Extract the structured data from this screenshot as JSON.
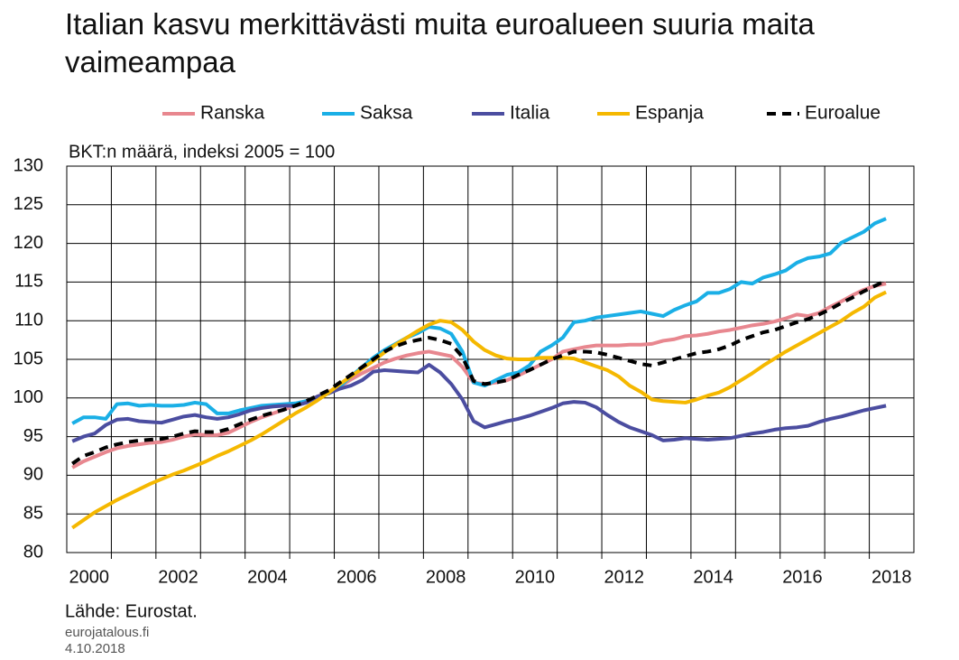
{
  "chart_data": {
    "type": "line",
    "title": "Italian kasvu merkittävästi muita euroalueen suuria maita vaimeampaa",
    "subtitle": "BKT:n määrä, indeksi 2005 = 100",
    "source": "Lähde: Eurostat.",
    "site": "eurojatalous.fi",
    "date": "4.10.2018",
    "legend": "top",
    "grid": true,
    "xlim": [
      2000,
      2019
    ],
    "xticks": [
      2000,
      2002,
      2004,
      2006,
      2008,
      2010,
      2012,
      2014,
      2016,
      2018
    ],
    "xgrid": [
      2001,
      2002,
      2003,
      2004,
      2005,
      2006,
      2007,
      2008,
      2009,
      2010,
      2011,
      2012,
      2013,
      2014,
      2015,
      2016,
      2017,
      2018
    ],
    "ylim": [
      80,
      130
    ],
    "yticks": [
      80,
      85,
      90,
      95,
      100,
      105,
      110,
      115,
      120,
      125,
      130
    ],
    "x": [
      2000.125,
      2000.375,
      2000.625,
      2000.875,
      2001.125,
      2001.375,
      2001.625,
      2001.875,
      2002.125,
      2002.375,
      2002.625,
      2002.875,
      2003.125,
      2003.375,
      2003.625,
      2003.875,
      2004.125,
      2004.375,
      2004.625,
      2004.875,
      2005.125,
      2005.375,
      2005.625,
      2005.875,
      2006.125,
      2006.375,
      2006.625,
      2006.875,
      2007.125,
      2007.375,
      2007.625,
      2007.875,
      2008.125,
      2008.375,
      2008.625,
      2008.875,
      2009.125,
      2009.375,
      2009.625,
      2009.875,
      2010.125,
      2010.375,
      2010.625,
      2010.875,
      2011.125,
      2011.375,
      2011.625,
      2011.875,
      2012.125,
      2012.375,
      2012.625,
      2012.875,
      2013.125,
      2013.375,
      2013.625,
      2013.875,
      2014.125,
      2014.375,
      2014.625,
      2014.875,
      2015.125,
      2015.375,
      2015.625,
      2015.875,
      2016.125,
      2016.375,
      2016.625,
      2016.875,
      2017.125,
      2017.375,
      2017.625,
      2017.875,
      2018.125,
      2018.375
    ],
    "series": [
      {
        "name": "Ranska",
        "color": "#e8878f",
        "linestyle": "solid",
        "values": [
          91,
          91.8,
          92.4,
          93,
          93.5,
          93.8,
          94,
          94.2,
          94.3,
          94.6,
          95,
          95.3,
          95.2,
          95.2,
          95.5,
          96.2,
          96.9,
          97.5,
          98,
          98.5,
          99.1,
          99.5,
          100.2,
          100.8,
          101.5,
          102.4,
          103.2,
          103.9,
          104.6,
          105.1,
          105.5,
          105.8,
          106,
          105.7,
          105.4,
          104,
          102,
          101.8,
          102,
          102.3,
          102.9,
          103.6,
          104.3,
          105,
          106,
          106.3,
          106.6,
          106.8,
          106.8,
          106.8,
          106.9,
          106.9,
          107,
          107.4,
          107.6,
          108,
          108.1,
          108.3,
          108.6,
          108.8,
          109.1,
          109.4,
          109.6,
          109.9,
          110.3,
          110.8,
          110.6,
          111,
          111.8,
          112.5,
          113.3,
          114,
          114.5,
          114.8
        ]
      },
      {
        "name": "Saksa",
        "color": "#1aafe6",
        "linestyle": "solid",
        "values": [
          96.7,
          97.5,
          97.5,
          97.3,
          99.2,
          99.3,
          99,
          99.1,
          99,
          99,
          99.1,
          99.4,
          99.2,
          98,
          98,
          98.4,
          98.7,
          99,
          99.1,
          99.2,
          99.3,
          99.6,
          100,
          100.6,
          101.5,
          102.8,
          104,
          105.2,
          106.2,
          107,
          107.8,
          108.4,
          109.2,
          109,
          108.3,
          106,
          102,
          101.6,
          102.3,
          103,
          103.3,
          104.2,
          106,
          106.8,
          107.8,
          109.8,
          110,
          110.4,
          110.6,
          110.8,
          111,
          111.2,
          110.9,
          110.6,
          111.4,
          112,
          112.5,
          113.6,
          113.6,
          114.1,
          115,
          114.8,
          115.6,
          116,
          116.5,
          117.5,
          118.1,
          118.3,
          118.7,
          120.1,
          120.8,
          121.5,
          122.6,
          123.2
        ]
      },
      {
        "name": "Italia",
        "color": "#4b4da0",
        "linestyle": "solid",
        "values": [
          94.4,
          95,
          95.4,
          96.5,
          97.2,
          97.3,
          97,
          96.9,
          96.8,
          97.2,
          97.6,
          97.8,
          97.5,
          97.3,
          97.5,
          97.9,
          98.4,
          98.7,
          98.9,
          99,
          99,
          99.4,
          100.2,
          100.6,
          101.2,
          101.6,
          102.3,
          103.4,
          103.6,
          103.5,
          103.4,
          103.3,
          104.3,
          103.3,
          101.8,
          99.8,
          97,
          96.2,
          96.6,
          97,
          97.3,
          97.7,
          98.2,
          98.7,
          99.3,
          99.5,
          99.4,
          98.8,
          97.8,
          96.9,
          96.2,
          95.7,
          95.2,
          94.5,
          94.6,
          94.8,
          94.7,
          94.6,
          94.7,
          94.8,
          95.1,
          95.4,
          95.6,
          95.9,
          96.1,
          96.2,
          96.4,
          96.9,
          97.3,
          97.6,
          98,
          98.4,
          98.7,
          99
        ]
      },
      {
        "name": "Espanja",
        "color": "#f5b800",
        "linestyle": "solid",
        "values": [
          83.2,
          84.2,
          85.2,
          86,
          86.8,
          87.5,
          88.2,
          88.9,
          89.5,
          90.1,
          90.6,
          91.2,
          91.8,
          92.5,
          93.1,
          93.8,
          94.5,
          95.3,
          96.2,
          97.1,
          98,
          98.8,
          99.7,
          100.7,
          101.8,
          102.8,
          103.8,
          104.8,
          105.9,
          106.9,
          107.8,
          108.7,
          109.5,
          110,
          109.8,
          108.8,
          107.3,
          106.2,
          105.5,
          105.1,
          105,
          105,
          105.2,
          105.2,
          105.2,
          105.1,
          104.6,
          104.1,
          103.6,
          102.8,
          101.6,
          100.8,
          99.8,
          99.6,
          99.5,
          99.4,
          99.8,
          100.3,
          100.7,
          101.4,
          102.3,
          103.2,
          104.2,
          105.1,
          106,
          106.8,
          107.6,
          108.4,
          109.2,
          110,
          111,
          111.8,
          113,
          113.7
        ]
      },
      {
        "name": "Euroalue",
        "color": "#000000",
        "linestyle": "dashed",
        "values": [
          91.5,
          92.5,
          93,
          93.6,
          94,
          94.3,
          94.5,
          94.6,
          94.7,
          95,
          95.4,
          95.7,
          95.6,
          95.6,
          96,
          96.6,
          97.2,
          97.7,
          98.1,
          98.5,
          99,
          99.6,
          100.3,
          101,
          102,
          103,
          104,
          105,
          106,
          106.7,
          107.2,
          107.5,
          107.8,
          107.5,
          107,
          105.3,
          102.2,
          101.8,
          102,
          102.3,
          103,
          103.6,
          104.3,
          105,
          105.5,
          106,
          106,
          105.9,
          105.6,
          105.2,
          104.8,
          104.4,
          104.2,
          104.6,
          105,
          105.4,
          105.8,
          106,
          106.3,
          106.8,
          107.5,
          108,
          108.5,
          108.8,
          109.3,
          109.8,
          110.2,
          110.8,
          111.5,
          112.3,
          113,
          113.8,
          114.5,
          115.2
        ]
      }
    ]
  }
}
